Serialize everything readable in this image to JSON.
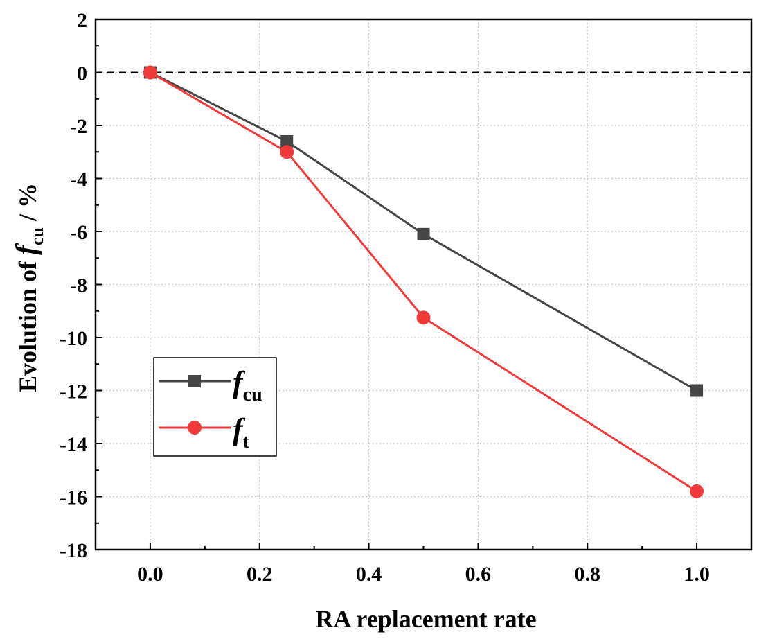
{
  "chart_data": {
    "type": "line",
    "x": [
      0.0,
      0.25,
      0.5,
      1.0
    ],
    "series": [
      {
        "name": "f_cu",
        "legend_main": "f",
        "legend_sub": "cu",
        "values": [
          0.0,
          -2.6,
          -6.1,
          -12.0
        ],
        "color": "#454545",
        "marker": "square"
      },
      {
        "name": "f_t",
        "legend_main": "f",
        "legend_sub": "t",
        "values": [
          0.0,
          -3.0,
          -9.25,
          -15.8
        ],
        "color": "#f03a3a",
        "marker": "circle"
      }
    ],
    "xlabel": "RA replacement rate",
    "ylabel_prefix": "Evolution of ",
    "ylabel_italic": "f",
    "ylabel_sub": "cu",
    "ylabel_suffix": " / %",
    "xlim": [
      -0.1,
      1.1
    ],
    "ylim": [
      -18,
      2
    ],
    "xticks": [
      0.0,
      0.2,
      0.4,
      0.6,
      0.8,
      1.0
    ],
    "xtick_labels": [
      "0.0",
      "0.2",
      "0.4",
      "0.6",
      "0.8",
      "1.0"
    ],
    "yticks": [
      2,
      0,
      -2,
      -4,
      -6,
      -8,
      -10,
      -12,
      -14,
      -16,
      -18
    ],
    "ytick_labels": [
      "2",
      "0",
      "-2",
      "-4",
      "-6",
      "-8",
      "-10",
      "-12",
      "-14",
      "-16",
      "-18"
    ],
    "reference_line": 0,
    "grid": true,
    "legend_position": "lower-left"
  }
}
